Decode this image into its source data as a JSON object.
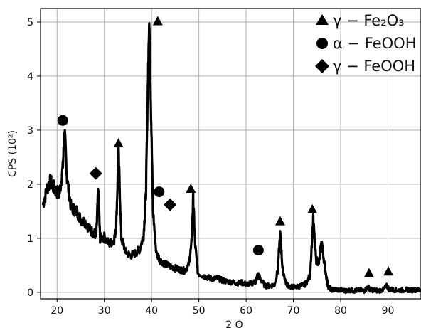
{
  "chart_data": {
    "type": "line",
    "title": "",
    "xlabel": "2 Θ",
    "ylabel": "CPS (10²)",
    "xlim": [
      16.5,
      97
    ],
    "ylim": [
      -0.12,
      5.25
    ],
    "xticks": [
      "20",
      "30",
      "40",
      "50",
      "60",
      "70",
      "80",
      "90"
    ],
    "yticks": [
      "0",
      "1",
      "2",
      "3",
      "4",
      "5"
    ],
    "grid": true,
    "legend_position": "top-right",
    "colors": {
      "line": "#000000",
      "grid": "#b0b0b0",
      "markers": "#000000"
    },
    "legend": [
      {
        "marker": "triangle",
        "label": "γ − Fe₂O₃"
      },
      {
        "marker": "circle",
        "label": "α − FeOOH"
      },
      {
        "marker": "diamond",
        "label": "γ − FeOOH"
      }
    ],
    "pattern": [
      [
        17.0,
        1.62
      ],
      [
        18.0,
        1.95
      ],
      [
        18.6,
        2.05
      ],
      [
        19.5,
        1.9
      ],
      [
        20.5,
        1.82
      ],
      [
        21.2,
        2.3
      ],
      [
        21.6,
        3.0
      ],
      [
        22.1,
        2.1
      ],
      [
        23.0,
        1.55
      ],
      [
        24.0,
        1.52
      ],
      [
        25.0,
        1.35
      ],
      [
        26.0,
        1.3
      ],
      [
        27.0,
        1.15
      ],
      [
        27.8,
        1.1
      ],
      [
        28.3,
        1.05
      ],
      [
        28.7,
        1.9
      ],
      [
        29.1,
        1.0
      ],
      [
        30.0,
        1.02
      ],
      [
        31.0,
        0.9
      ],
      [
        32.0,
        0.95
      ],
      [
        32.5,
        1.2
      ],
      [
        33.0,
        2.6
      ],
      [
        33.6,
        1.0
      ],
      [
        34.5,
        0.75
      ],
      [
        35.5,
        0.68
      ],
      [
        36.5,
        0.72
      ],
      [
        37.5,
        0.8
      ],
      [
        38.3,
        1.05
      ],
      [
        38.8,
        1.8
      ],
      [
        39.2,
        3.8
      ],
      [
        39.5,
        5.1
      ],
      [
        39.8,
        3.7
      ],
      [
        40.3,
        1.5
      ],
      [
        41.0,
        0.72
      ],
      [
        42.0,
        0.58
      ],
      [
        43.0,
        0.52
      ],
      [
        44.0,
        0.48
      ],
      [
        45.0,
        0.45
      ],
      [
        46.0,
        0.42
      ],
      [
        47.0,
        0.4
      ],
      [
        47.8,
        0.5
      ],
      [
        48.4,
        0.85
      ],
      [
        48.8,
        1.75
      ],
      [
        49.2,
        0.9
      ],
      [
        49.8,
        0.35
      ],
      [
        51.0,
        0.3
      ],
      [
        52.0,
        0.27
      ],
      [
        53.0,
        0.25
      ],
      [
        54.0,
        0.26
      ],
      [
        55.0,
        0.22
      ],
      [
        56.0,
        0.2
      ],
      [
        57.0,
        0.19
      ],
      [
        58.0,
        0.17
      ],
      [
        59.0,
        0.18
      ],
      [
        60.0,
        0.15
      ],
      [
        61.0,
        0.16
      ],
      [
        62.0,
        0.2
      ],
      [
        62.5,
        0.33
      ],
      [
        63.0,
        0.25
      ],
      [
        64.0,
        0.12
      ],
      [
        65.0,
        0.12
      ],
      [
        66.0,
        0.14
      ],
      [
        66.7,
        0.4
      ],
      [
        67.2,
        1.1
      ],
      [
        67.7,
        0.45
      ],
      [
        68.5,
        0.15
      ],
      [
        69.5,
        0.1
      ],
      [
        70.5,
        0.1
      ],
      [
        71.5,
        0.12
      ],
      [
        72.5,
        0.15
      ],
      [
        73.5,
        0.3
      ],
      [
        74.2,
        1.35
      ],
      [
        74.8,
        0.6
      ],
      [
        75.4,
        0.55
      ],
      [
        76.0,
        0.95
      ],
      [
        76.6,
        0.5
      ],
      [
        77.3,
        0.12
      ],
      [
        78.0,
        0.05
      ],
      [
        79.0,
        0.05
      ],
      [
        80.0,
        0.04
      ],
      [
        81.0,
        0.03
      ],
      [
        82.0,
        0.04
      ],
      [
        83.0,
        0.03
      ],
      [
        84.0,
        0.04
      ],
      [
        85.0,
        0.03
      ],
      [
        85.8,
        0.1
      ],
      [
        86.2,
        0.05
      ],
      [
        87.0,
        0.04
      ],
      [
        88.0,
        0.03
      ],
      [
        89.0,
        0.05
      ],
      [
        89.8,
        0.12
      ],
      [
        90.2,
        0.06
      ],
      [
        91.0,
        0.05
      ],
      [
        92.0,
        0.04
      ],
      [
        93.0,
        0.04
      ],
      [
        94.0,
        0.05
      ],
      [
        95.0,
        0.04
      ],
      [
        96.0,
        0.05
      ],
      [
        97.0,
        0.04
      ]
    ],
    "peak_markers": [
      {
        "phase": "α − FeOOH",
        "shape": "circle",
        "x": 21.2,
        "y": 3.18
      },
      {
        "phase": "γ − FeOOH",
        "shape": "diamond",
        "x": 28.2,
        "y": 2.2
      },
      {
        "phase": "γ − Fe₂O₃",
        "shape": "triangle",
        "x": 33.0,
        "y": 2.76
      },
      {
        "phase": "γ − Fe₂O₃",
        "shape": "triangle",
        "x": 41.3,
        "y": 5.02
      },
      {
        "phase": "α − FeOOH",
        "shape": "circle",
        "x": 41.6,
        "y": 1.86
      },
      {
        "phase": "γ − FeOOH",
        "shape": "diamond",
        "x": 43.9,
        "y": 1.62
      },
      {
        "phase": "γ − Fe₂O₃",
        "shape": "triangle",
        "x": 48.3,
        "y": 1.92
      },
      {
        "phase": "α − FeOOH",
        "shape": "circle",
        "x": 62.6,
        "y": 0.78
      },
      {
        "phase": "γ − Fe₂O₃",
        "shape": "triangle",
        "x": 67.2,
        "y": 1.32
      },
      {
        "phase": "γ − Fe₂O₃",
        "shape": "triangle",
        "x": 74.0,
        "y": 1.54
      },
      {
        "phase": "γ − Fe₂O₃",
        "shape": "triangle",
        "x": 86.0,
        "y": 0.36
      },
      {
        "phase": "γ − Fe₂O₃",
        "shape": "triangle",
        "x": 90.1,
        "y": 0.39
      }
    ]
  }
}
